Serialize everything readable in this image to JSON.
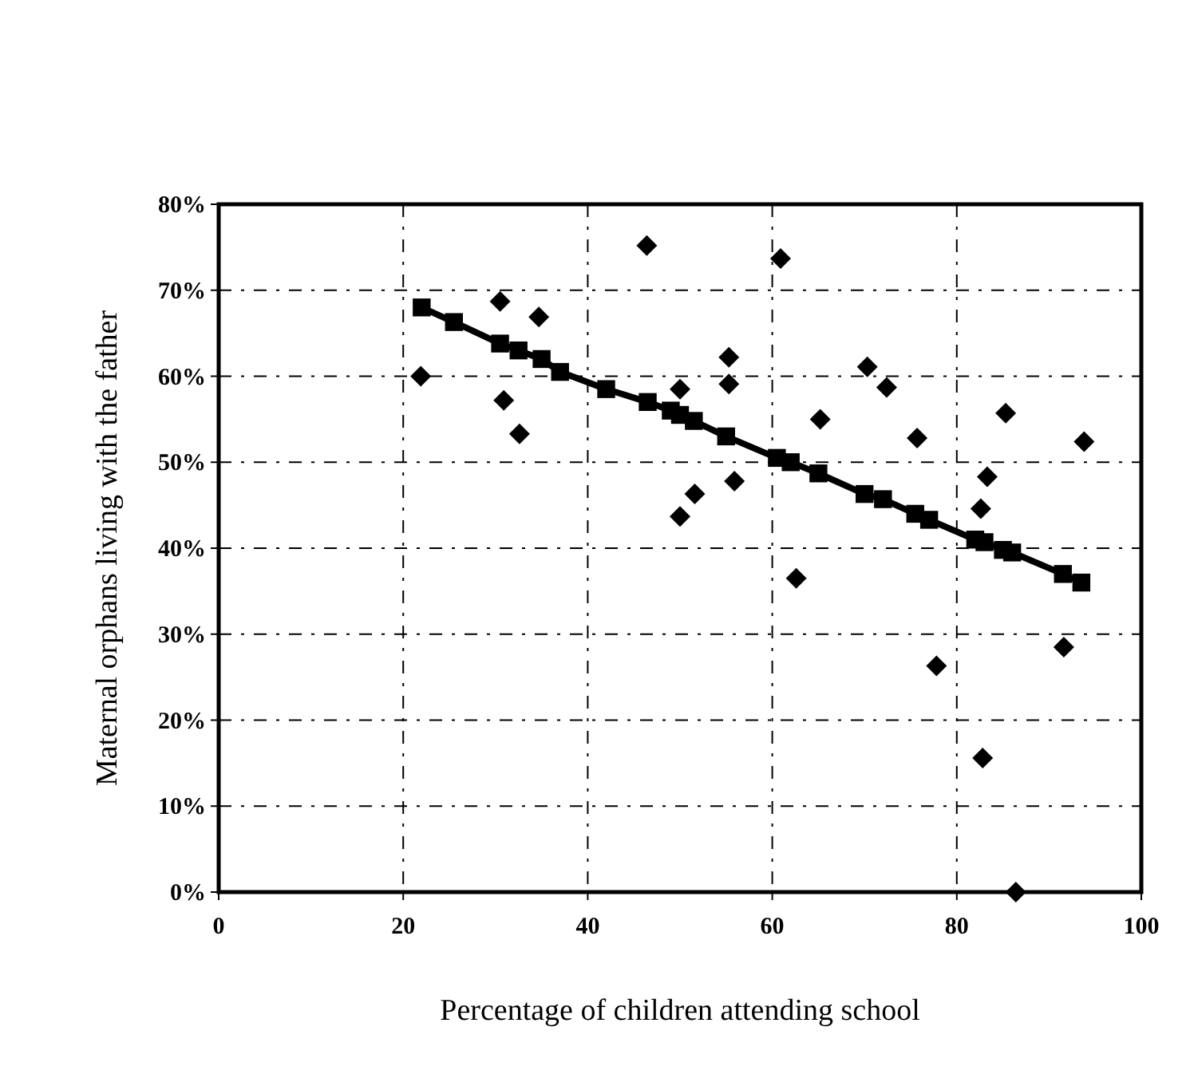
{
  "chart_data": {
    "type": "scatter",
    "xlabel": "Percentage of children attending school",
    "ylabel": "Maternal orphans living with the father",
    "xlim": [
      0,
      100
    ],
    "xticks": [
      0,
      20,
      40,
      60,
      80,
      100
    ],
    "ylim": [
      0,
      80
    ],
    "yticks": [
      {
        "value": 0,
        "label": "0%"
      },
      {
        "value": 10,
        "label": "10%"
      },
      {
        "value": 20,
        "label": "20%"
      },
      {
        "value": 30,
        "label": "30%"
      },
      {
        "value": 40,
        "label": "40%"
      },
      {
        "value": 50,
        "label": "50%"
      },
      {
        "value": 60,
        "label": "60%"
      },
      {
        "value": 70,
        "label": "70%"
      },
      {
        "value": 80,
        "label": "80%"
      }
    ],
    "grid": true,
    "series": [
      {
        "marker": "diamond",
        "color": "#000000",
        "x": [
          21.9,
          30.5,
          34.7,
          30.9,
          32.6,
          42.0,
          46.4,
          50.0,
          51.6,
          50.0,
          55.3,
          55.3,
          55.9,
          60.9,
          62.6,
          65.2,
          70.3,
          72.4,
          75.7,
          77.8,
          82.6,
          82.8,
          83.3,
          85.3,
          86.4,
          91.6,
          93.8
        ],
        "values": [
          60.0,
          68.7,
          66.9,
          57.2,
          53.3,
          null,
          75.2,
          58.5,
          46.3,
          43.7,
          62.2,
          59.1,
          47.8,
          73.7,
          36.5,
          55.0,
          61.1,
          58.7,
          52.8,
          26.3,
          44.6,
          15.6,
          48.3,
          55.7,
          0,
          28.5,
          52.4
        ]
      },
      {
        "type": "line",
        "marker": "square",
        "line_style": "solid",
        "color": "#000000",
        "x": [
          22,
          25.5,
          30.5,
          32.5,
          35,
          37,
          42,
          46.5,
          49,
          50,
          51.5,
          55,
          60.5,
          62,
          65,
          70,
          72,
          75.5,
          77,
          82,
          83,
          85,
          86,
          91.5,
          93.5
        ],
        "values": [
          68,
          66.3,
          63.8,
          63,
          62,
          60.5,
          58.5,
          57,
          56,
          55.5,
          54.8,
          53,
          50.5,
          50,
          48.7,
          46.3,
          45.7,
          44,
          43.3,
          41,
          40.7,
          39.8,
          39.5,
          37,
          36
        ]
      }
    ]
  }
}
